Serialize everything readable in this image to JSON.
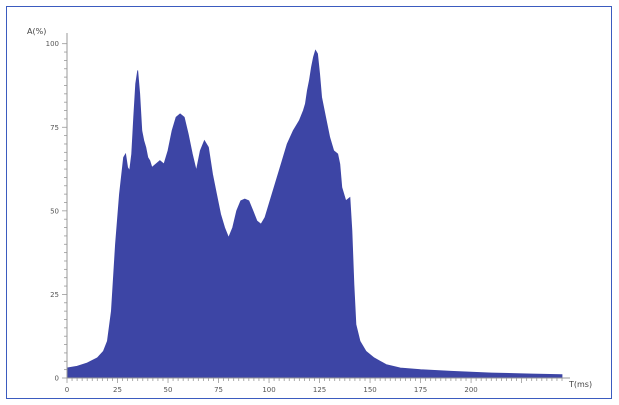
{
  "chart_data": {
    "type": "area",
    "title": "",
    "ylabel": "A(%)",
    "xlabel": "T(ms)",
    "xlim": [
      0,
      245
    ],
    "ylim": [
      0,
      102
    ],
    "x_ticks": [
      0,
      25,
      50,
      75,
      100,
      125,
      150,
      175,
      200
    ],
    "y_ticks": [
      0,
      25,
      50,
      75,
      100
    ],
    "grid": false,
    "fill_color": "#3d45a5",
    "axis_color": "#999999",
    "series": [
      {
        "values": [
          [
            0,
            3
          ],
          [
            5,
            3.5
          ],
          [
            10,
            4.5
          ],
          [
            15,
            6
          ],
          [
            18,
            8
          ],
          [
            20,
            11
          ],
          [
            22,
            20
          ],
          [
            24,
            40
          ],
          [
            26,
            55
          ],
          [
            28,
            66
          ],
          [
            29,
            67
          ],
          [
            30,
            63
          ],
          [
            31,
            62
          ],
          [
            32,
            67
          ],
          [
            33,
            78
          ],
          [
            34,
            88
          ],
          [
            35,
            92
          ],
          [
            36,
            85
          ],
          [
            37,
            74
          ],
          [
            38,
            71
          ],
          [
            39,
            69
          ],
          [
            40,
            66
          ],
          [
            41,
            65
          ],
          [
            42,
            63
          ],
          [
            44,
            64
          ],
          [
            46,
            65
          ],
          [
            48,
            64
          ],
          [
            50,
            68
          ],
          [
            52,
            74
          ],
          [
            54,
            78
          ],
          [
            56,
            79
          ],
          [
            58,
            78
          ],
          [
            60,
            73
          ],
          [
            62,
            67
          ],
          [
            64,
            62
          ],
          [
            66,
            68
          ],
          [
            68,
            71
          ],
          [
            70,
            69
          ],
          [
            72,
            61
          ],
          [
            74,
            55
          ],
          [
            76,
            49
          ],
          [
            78,
            45
          ],
          [
            80,
            42
          ],
          [
            82,
            45
          ],
          [
            84,
            50
          ],
          [
            86,
            53
          ],
          [
            88,
            53.5
          ],
          [
            90,
            53
          ],
          [
            92,
            50
          ],
          [
            94,
            47
          ],
          [
            96,
            46
          ],
          [
            98,
            48
          ],
          [
            100,
            52
          ],
          [
            103,
            58
          ],
          [
            106,
            64
          ],
          [
            109,
            70
          ],
          [
            112,
            74
          ],
          [
            115,
            77
          ],
          [
            117,
            80
          ],
          [
            118,
            82
          ],
          [
            119,
            86
          ],
          [
            120,
            89
          ],
          [
            121,
            93
          ],
          [
            122,
            96
          ],
          [
            123,
            98
          ],
          [
            124,
            97
          ],
          [
            125,
            91
          ],
          [
            126,
            84
          ],
          [
            128,
            78
          ],
          [
            130,
            72
          ],
          [
            132,
            68
          ],
          [
            134,
            67
          ],
          [
            135,
            64
          ],
          [
            136,
            57
          ],
          [
            138,
            53
          ],
          [
            140,
            54
          ],
          [
            141,
            44
          ],
          [
            142,
            28
          ],
          [
            143,
            16
          ],
          [
            145,
            11
          ],
          [
            148,
            8
          ],
          [
            152,
            6
          ],
          [
            158,
            4
          ],
          [
            165,
            3
          ],
          [
            175,
            2.5
          ],
          [
            190,
            2
          ],
          [
            210,
            1.5
          ],
          [
            230,
            1.2
          ],
          [
            245,
            1
          ]
        ]
      }
    ]
  }
}
